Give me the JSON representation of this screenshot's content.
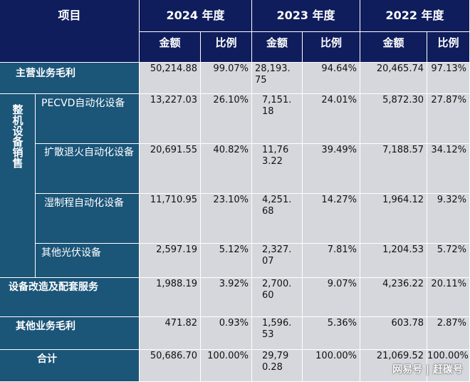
{
  "header": {
    "item_label": "项目",
    "years": [
      "2024 年度",
      "2023 年度",
      "2022 年度"
    ],
    "sub_amount": "金额",
    "sub_ratio": "比例"
  },
  "rows": [
    {
      "label": "主营业务毛利",
      "v2024": "50,214.88",
      "r2024": "99.07%",
      "v2023": "28,193.75",
      "r2023": "94.64%",
      "v2022": "20,465.74",
      "r2022": "97.13%"
    },
    {
      "label": "PECVD自动化设备",
      "v2024": "13,227.03",
      "r2024": "26.10%",
      "v2023": "7,151.18",
      "r2023": "24.01%",
      "v2022": "5,872.30",
      "r2022": "27.87%"
    },
    {
      "label": "扩散退火自动化设备",
      "v2024": "20,691.55",
      "r2024": "40.82%",
      "v2023": "11,763.22",
      "r2023": "39.49%",
      "v2022": "7,188.57",
      "r2022": "34.12%"
    },
    {
      "label": "湿制程自动化设备",
      "v2024": "11,710.95",
      "r2024": "23.10%",
      "v2023": "4,251.68",
      "r2023": "14.27%",
      "v2022": "1,964.12",
      "r2022": "9.32%"
    },
    {
      "label": "其他光伏设备",
      "v2024": "2,597.19",
      "r2024": "5.12%",
      "v2023": "2,327.07",
      "r2023": "7.81%",
      "v2022": "1,204.53",
      "r2022": "5.72%"
    },
    {
      "label": "设备改造及配套服务",
      "v2024": "1,988.19",
      "r2024": "3.92%",
      "v2023": "2,700.60",
      "r2023": "9.07%",
      "v2022": "4,236.22",
      "r2022": "20.11%"
    },
    {
      "label": "其他业务毛利",
      "v2024": "471.82",
      "r2024": "0.93%",
      "v2023": "1,596.53",
      "r2023": "5.36%",
      "v2022": "603.78",
      "r2022": "2.87%"
    },
    {
      "label": "合计",
      "v2024": "50,686.70",
      "r2024": "100.00%",
      "v2023": "29,790.28",
      "r2023": "100.00%",
      "v2022": "21,069.52",
      "r2022": "100.00%"
    }
  ],
  "group_label": "整机设备销售",
  "watermark": "网易号 | 赶碳号"
}
